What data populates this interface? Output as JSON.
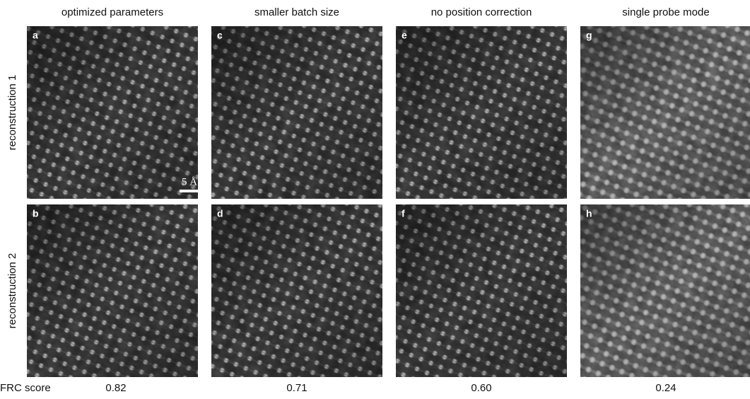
{
  "columns": [
    "optimized parameters",
    "smaller batch size",
    "no position correction",
    "single probe mode"
  ],
  "rows": [
    {
      "label": "reconstruction 1",
      "panels": [
        "a",
        "c",
        "e",
        "g"
      ]
    },
    {
      "label": "reconstruction 2",
      "panels": [
        "b",
        "d",
        "f",
        "h"
      ]
    }
  ],
  "scale_bar": "5 Å",
  "frc": {
    "label": "FRC score",
    "scores": [
      "0.82",
      "0.71",
      "0.60",
      "0.24"
    ]
  }
}
